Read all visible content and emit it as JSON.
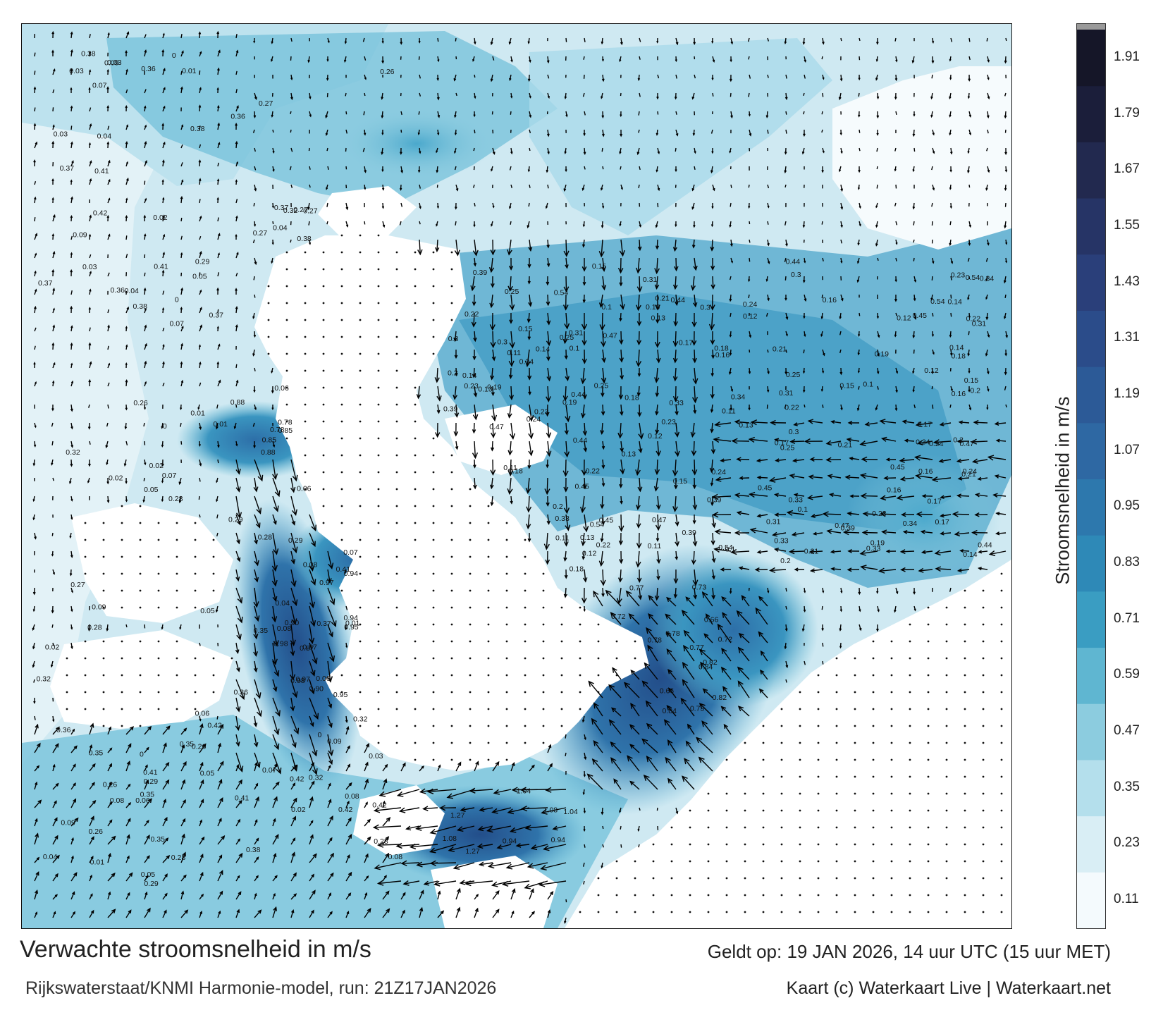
{
  "map": {
    "title": "Verwachte stroomsnelheid in m/s",
    "source": "Rijkswaterstaat/KNMI Harmonie-model, run: 21Z17JAN2026",
    "valid_time": "Geldt op: 19 JAN 2026, 14 uur UTC (15 uur MET)",
    "credits": "Kaart (c) Waterkaart Live | Waterkaart.net",
    "land_color": "#ffffff",
    "arrow_color": "#000000",
    "background_water_color": "#dff0f6"
  },
  "colorbar": {
    "title": "Stroomsnelheid in m/s",
    "ticks": [
      "1.91",
      "1.79",
      "1.67",
      "1.55",
      "1.43",
      "1.31",
      "1.19",
      "1.07",
      "0.95",
      "0.83",
      "0.71",
      "0.59",
      "0.47",
      "0.35",
      "0.23",
      "0.11"
    ],
    "colors": [
      "#f4fafd",
      "#d9eef5",
      "#b4dfec",
      "#8cccdf",
      "#5fb6d1",
      "#3a9dc2",
      "#2e89b7",
      "#2d78ad",
      "#2e68a3",
      "#2c5a97",
      "#2b4c8a",
      "#2a3f7a",
      "#263466",
      "#22294f",
      "#1b1e3a",
      "#151628"
    ],
    "cap_color": "#9a9a9a"
  },
  "speed_labels": [
    {
      "text": "0.88",
      "region": "westerschelde"
    },
    {
      "text": "0.78",
      "region": "westerschelde"
    },
    {
      "text": "0.85",
      "region": "westerschelde"
    },
    {
      "text": "0.98",
      "region": "oosterschelde"
    },
    {
      "text": "0.97",
      "region": "oosterschelde"
    },
    {
      "text": "0.95",
      "region": "oosterschelde"
    },
    {
      "text": "0.94",
      "region": "oosterschelde"
    },
    {
      "text": "0.90",
      "region": "oosterschelde"
    },
    {
      "text": "0.87",
      "region": "oosterschelde"
    },
    {
      "text": "0.84",
      "region": "waddenzee-west"
    },
    {
      "text": "0.82",
      "region": "waddenzee-west"
    },
    {
      "text": "0.78",
      "region": "waddenzee-west"
    },
    {
      "text": "0.77",
      "region": "waddenzee-west"
    },
    {
      "text": "0.73",
      "region": "waddenzee-west"
    },
    {
      "text": "0.72",
      "region": "waddenzee-west"
    },
    {
      "text": "0.66",
      "region": "waddenzee-west"
    },
    {
      "text": "1.27",
      "region": "ijsselmeer-south"
    },
    {
      "text": "1.08",
      "region": "ijsselmeer-south"
    },
    {
      "text": "1.04",
      "region": "ijsselmeer-south"
    },
    {
      "text": "0.94",
      "region": "ijsselmeer-south"
    },
    {
      "text": "0.54",
      "region": "noordzee-oost"
    },
    {
      "text": "0.47",
      "region": "noordzee-oost"
    },
    {
      "text": "0.45",
      "region": "noordzee-oost"
    },
    {
      "text": "0.44",
      "region": "noordzee-oost"
    },
    {
      "text": "0.39",
      "region": "noordzee-oost"
    },
    {
      "text": "0.34",
      "region": "noordzee-oost"
    },
    {
      "text": "0.33",
      "region": "noordzee-oost"
    },
    {
      "text": "0.31",
      "region": "noordzee-oost"
    },
    {
      "text": "0.3",
      "region": "noordzee-oost"
    },
    {
      "text": "0.25",
      "region": "noordzee-oost"
    },
    {
      "text": "0.24",
      "region": "noordzee-oost"
    },
    {
      "text": "0.23",
      "region": "noordzee-oost"
    },
    {
      "text": "0.22",
      "region": "noordzee-oost"
    },
    {
      "text": "0.21",
      "region": "noordzee-oost"
    },
    {
      "text": "0.2",
      "region": "noordzee-oost"
    },
    {
      "text": "0.19",
      "region": "noordzee-oost"
    },
    {
      "text": "0.18",
      "region": "noordzee-oost"
    },
    {
      "text": "0.17",
      "region": "noordzee-oost"
    },
    {
      "text": "0.16",
      "region": "noordzee-oost"
    },
    {
      "text": "0.15",
      "region": "noordzee-oost"
    },
    {
      "text": "0.14",
      "region": "noordzee-oost"
    },
    {
      "text": "0.13",
      "region": "noordzee-oost"
    },
    {
      "text": "0.12",
      "region": "noordzee-oost"
    },
    {
      "text": "0.11",
      "region": "noordzee-oost"
    },
    {
      "text": "0.1",
      "region": "noordzee-oost"
    },
    {
      "text": "0.09",
      "region": "noordzee-west"
    },
    {
      "text": "0.08",
      "region": "noordzee-west"
    },
    {
      "text": "0.07",
      "region": "noordzee-west"
    },
    {
      "text": "0.06",
      "region": "noordzee-west"
    },
    {
      "text": "0.05",
      "region": "noordzee-west"
    },
    {
      "text": "0.04",
      "region": "noordzee-west"
    },
    {
      "text": "0.03",
      "region": "noordzee-west"
    },
    {
      "text": "0.02",
      "region": "noordzee-west"
    },
    {
      "text": "0.01",
      "region": "noordzee-west"
    },
    {
      "text": "0",
      "region": "noordzee-west"
    },
    {
      "text": "0.29",
      "region": "noordzee-west"
    },
    {
      "text": "0.28",
      "region": "noordzee-west"
    },
    {
      "text": "0.27",
      "region": "noordzee-west"
    },
    {
      "text": "0.26",
      "region": "noordzee-west"
    },
    {
      "text": "0.42",
      "region": "noordzee-west"
    },
    {
      "text": "0.41",
      "region": "noordzee-west"
    },
    {
      "text": "0.38",
      "region": "noordzee-west"
    },
    {
      "text": "0.37",
      "region": "noordzee-west"
    },
    {
      "text": "0.36",
      "region": "noordzee-west"
    },
    {
      "text": "0.35",
      "region": "noordzee-west"
    },
    {
      "text": "0.32",
      "region": "noordzee-west"
    }
  ]
}
